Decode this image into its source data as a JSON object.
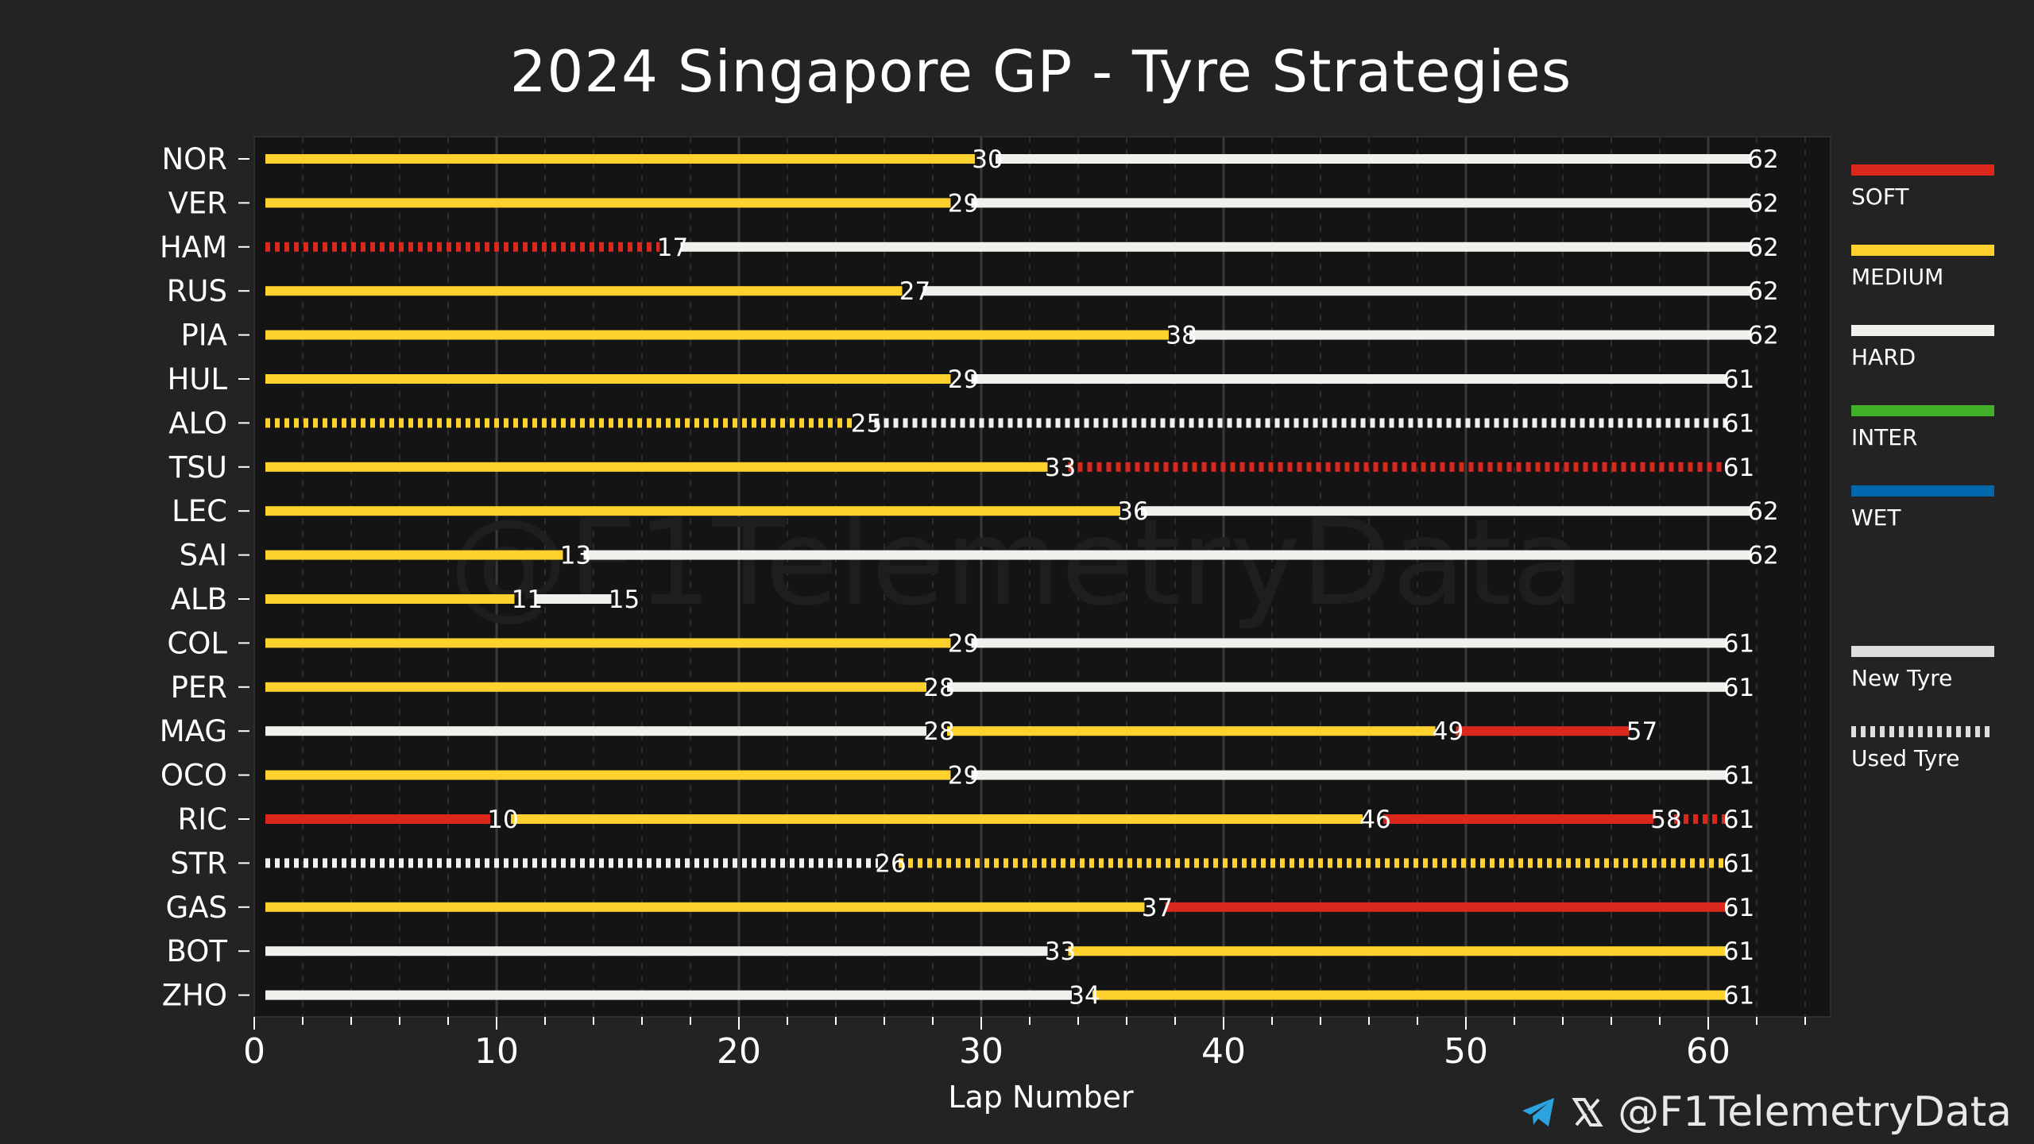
{
  "chart_data": {
    "type": "bar",
    "title": "2024 Singapore GP - Tyre Strategies",
    "xlabel": "Lap Number",
    "ylabel": "",
    "xlim": [
      0,
      65
    ],
    "xticks": [
      0,
      10,
      20,
      30,
      40,
      50,
      60
    ],
    "grid": true,
    "watermark": "@F1TelemetryData",
    "compound_colors": {
      "SOFT": "#da291c",
      "MEDIUM": "#ffd12e",
      "HARD": "#f0f0ec",
      "INTER": "#43b02a",
      "WET": "#0067ad"
    },
    "legend": {
      "compounds": [
        "SOFT",
        "MEDIUM",
        "HARD",
        "INTER",
        "WET"
      ],
      "tyre_states": [
        "New Tyre",
        "Used Tyre"
      ],
      "position": "right"
    },
    "drivers": [
      {
        "driver": "NOR",
        "stints": [
          {
            "compound": "MEDIUM",
            "start": 0,
            "end": 30,
            "used": false
          },
          {
            "compound": "HARD",
            "start": 30,
            "end": 62,
            "used": false
          }
        ]
      },
      {
        "driver": "VER",
        "stints": [
          {
            "compound": "MEDIUM",
            "start": 0,
            "end": 29,
            "used": false
          },
          {
            "compound": "HARD",
            "start": 29,
            "end": 62,
            "used": false
          }
        ]
      },
      {
        "driver": "HAM",
        "stints": [
          {
            "compound": "SOFT",
            "start": 0,
            "end": 17,
            "used": true
          },
          {
            "compound": "HARD",
            "start": 17,
            "end": 62,
            "used": false
          }
        ]
      },
      {
        "driver": "RUS",
        "stints": [
          {
            "compound": "MEDIUM",
            "start": 0,
            "end": 27,
            "used": false
          },
          {
            "compound": "HARD",
            "start": 27,
            "end": 62,
            "used": false
          }
        ]
      },
      {
        "driver": "PIA",
        "stints": [
          {
            "compound": "MEDIUM",
            "start": 0,
            "end": 38,
            "used": false
          },
          {
            "compound": "HARD",
            "start": 38,
            "end": 62,
            "used": false
          }
        ]
      },
      {
        "driver": "HUL",
        "stints": [
          {
            "compound": "MEDIUM",
            "start": 0,
            "end": 29,
            "used": false
          },
          {
            "compound": "HARD",
            "start": 29,
            "end": 61,
            "used": false
          }
        ]
      },
      {
        "driver": "ALO",
        "stints": [
          {
            "compound": "MEDIUM",
            "start": 0,
            "end": 25,
            "used": true
          },
          {
            "compound": "HARD",
            "start": 25,
            "end": 61,
            "used": true
          }
        ]
      },
      {
        "driver": "TSU",
        "stints": [
          {
            "compound": "MEDIUM",
            "start": 0,
            "end": 33,
            "used": false
          },
          {
            "compound": "SOFT",
            "start": 33,
            "end": 61,
            "used": true
          }
        ]
      },
      {
        "driver": "LEC",
        "stints": [
          {
            "compound": "MEDIUM",
            "start": 0,
            "end": 36,
            "used": false
          },
          {
            "compound": "HARD",
            "start": 36,
            "end": 62,
            "used": false
          }
        ]
      },
      {
        "driver": "SAI",
        "stints": [
          {
            "compound": "MEDIUM",
            "start": 0,
            "end": 13,
            "used": false
          },
          {
            "compound": "HARD",
            "start": 13,
            "end": 62,
            "used": false
          }
        ]
      },
      {
        "driver": "ALB",
        "stints": [
          {
            "compound": "MEDIUM",
            "start": 0,
            "end": 11,
            "used": false
          },
          {
            "compound": "HARD",
            "start": 11,
            "end": 15,
            "used": false
          }
        ]
      },
      {
        "driver": "COL",
        "stints": [
          {
            "compound": "MEDIUM",
            "start": 0,
            "end": 29,
            "used": false
          },
          {
            "compound": "HARD",
            "start": 29,
            "end": 61,
            "used": false
          }
        ]
      },
      {
        "driver": "PER",
        "stints": [
          {
            "compound": "MEDIUM",
            "start": 0,
            "end": 28,
            "used": false
          },
          {
            "compound": "HARD",
            "start": 28,
            "end": 61,
            "used": false
          }
        ]
      },
      {
        "driver": "MAG",
        "stints": [
          {
            "compound": "HARD",
            "start": 0,
            "end": 28,
            "used": false
          },
          {
            "compound": "MEDIUM",
            "start": 28,
            "end": 49,
            "used": false
          },
          {
            "compound": "SOFT",
            "start": 49,
            "end": 57,
            "used": false
          }
        ]
      },
      {
        "driver": "OCO",
        "stints": [
          {
            "compound": "MEDIUM",
            "start": 0,
            "end": 29,
            "used": false
          },
          {
            "compound": "HARD",
            "start": 29,
            "end": 61,
            "used": false
          }
        ]
      },
      {
        "driver": "RIC",
        "stints": [
          {
            "compound": "SOFT",
            "start": 0,
            "end": 10,
            "used": false
          },
          {
            "compound": "MEDIUM",
            "start": 10,
            "end": 46,
            "used": false
          },
          {
            "compound": "SOFT",
            "start": 46,
            "end": 58,
            "used": false
          },
          {
            "compound": "SOFT",
            "start": 58,
            "end": 61,
            "used": true
          }
        ]
      },
      {
        "driver": "STR",
        "stints": [
          {
            "compound": "HARD",
            "start": 0,
            "end": 26,
            "used": true
          },
          {
            "compound": "MEDIUM",
            "start": 26,
            "end": 61,
            "used": true
          }
        ]
      },
      {
        "driver": "GAS",
        "stints": [
          {
            "compound": "MEDIUM",
            "start": 0,
            "end": 37,
            "used": false
          },
          {
            "compound": "SOFT",
            "start": 37,
            "end": 61,
            "used": false
          }
        ]
      },
      {
        "driver": "BOT",
        "stints": [
          {
            "compound": "HARD",
            "start": 0,
            "end": 33,
            "used": false
          },
          {
            "compound": "MEDIUM",
            "start": 33,
            "end": 61,
            "used": false
          }
        ]
      },
      {
        "driver": "ZHO",
        "stints": [
          {
            "compound": "HARD",
            "start": 0,
            "end": 34,
            "used": false
          },
          {
            "compound": "MEDIUM",
            "start": 34,
            "end": 61,
            "used": false
          }
        ]
      }
    ]
  },
  "footer": {
    "handle": "@F1TelemetryData",
    "telegram_icon": "telegram-icon",
    "x_icon": "x-logo-icon"
  }
}
